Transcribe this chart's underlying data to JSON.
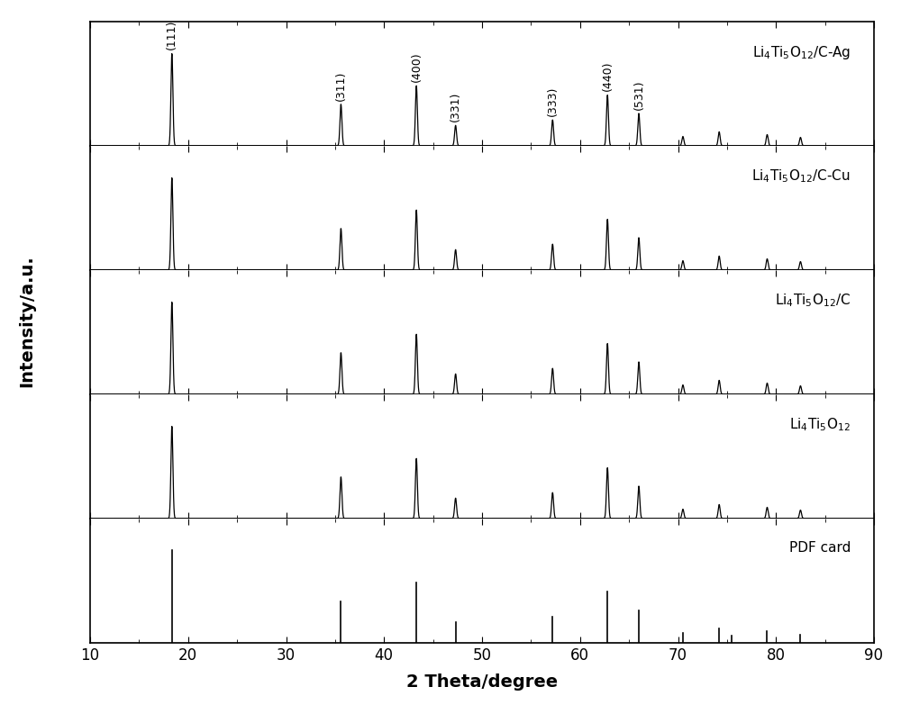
{
  "xlim": [
    10,
    90
  ],
  "xlabel": "2 Theta/degree",
  "ylabel": "Intensity/a.u.",
  "xticks": [
    10,
    20,
    30,
    40,
    50,
    60,
    70,
    80,
    90
  ],
  "background_color": "#ffffff",
  "peak_positions": [
    18.35,
    35.6,
    43.3,
    47.3,
    57.2,
    62.8,
    66.0,
    70.5,
    74.2,
    79.1,
    82.5
  ],
  "peak_heights": [
    1.0,
    0.45,
    0.65,
    0.22,
    0.28,
    0.55,
    0.35,
    0.1,
    0.15,
    0.12,
    0.09
  ],
  "pdf_positions": [
    18.35,
    35.6,
    43.3,
    47.3,
    57.2,
    62.8,
    66.0,
    70.5,
    74.2,
    75.5,
    79.1,
    82.5
  ],
  "pdf_heights": [
    1.0,
    0.45,
    0.65,
    0.22,
    0.28,
    0.55,
    0.35,
    0.1,
    0.15,
    0.08,
    0.12,
    0.09
  ],
  "miller_indices": [
    "(111)",
    "(311)",
    "(400)",
    "(331)",
    "(333)",
    "(440)",
    "(531)"
  ],
  "miller_positions": [
    18.35,
    35.6,
    43.3,
    47.3,
    57.2,
    62.8,
    66.0
  ],
  "miller_heights": [
    1.0,
    0.45,
    0.65,
    0.22,
    0.28,
    0.55,
    0.35
  ],
  "sample_labels": [
    "Li$_4$Ti$_5$O$_{12}$/C-Ag",
    "Li$_4$Ti$_5$O$_{12}$/C-Cu",
    "Li$_4$Ti$_5$O$_{12}$/C",
    "Li$_4$Ti$_5$O$_{12}$",
    "PDF card"
  ],
  "sigma": 0.1,
  "figure_width": 10.0,
  "figure_height": 7.93
}
